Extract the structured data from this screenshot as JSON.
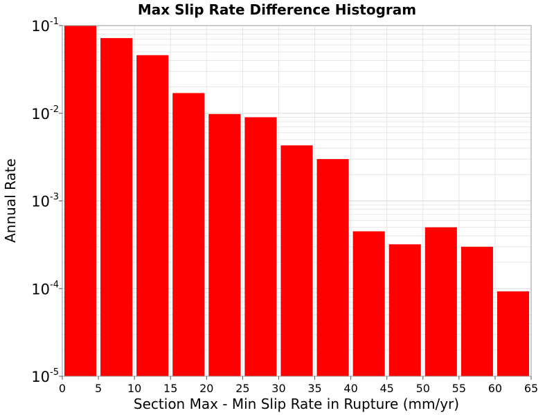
{
  "chart_data": {
    "type": "bar",
    "title": "Max Slip Rate Difference Histogram",
    "xlabel": "Section Max - Min Slip Rate in Rupture (mm/yr)",
    "ylabel": "Annual Rate",
    "yscale": "log",
    "xlim": [
      0,
      65
    ],
    "ylim": [
      1e-05,
      0.1
    ],
    "x_ticks": [
      0,
      5,
      10,
      15,
      20,
      25,
      30,
      35,
      40,
      45,
      50,
      55,
      60,
      65
    ],
    "x_tick_labels": [
      "0",
      "5",
      "10",
      "15",
      "20",
      "25",
      "30",
      "35",
      "40",
      "45",
      "50",
      "55",
      "60",
      "65"
    ],
    "y_ticks": [
      0.1,
      0.01,
      0.001,
      0.0001,
      1e-05
    ],
    "y_tick_labels": [
      {
        "base": "10",
        "exp": "-1"
      },
      {
        "base": "10",
        "exp": "-2"
      },
      {
        "base": "10",
        "exp": "-3"
      },
      {
        "base": "10",
        "exp": "-4"
      },
      {
        "base": "10",
        "exp": "-5"
      }
    ],
    "grid": true,
    "bar_color": "#ff0000",
    "bin_width": 5,
    "bins": [
      {
        "x_start": 0,
        "x_end": 5,
        "value": 0.1
      },
      {
        "x_start": 5,
        "x_end": 10,
        "value": 0.072
      },
      {
        "x_start": 10,
        "x_end": 15,
        "value": 0.046
      },
      {
        "x_start": 15,
        "x_end": 20,
        "value": 0.017
      },
      {
        "x_start": 20,
        "x_end": 25,
        "value": 0.0098
      },
      {
        "x_start": 25,
        "x_end": 30,
        "value": 0.009
      },
      {
        "x_start": 30,
        "x_end": 35,
        "value": 0.0043
      },
      {
        "x_start": 35,
        "x_end": 40,
        "value": 0.003
      },
      {
        "x_start": 40,
        "x_end": 45,
        "value": 0.00045
      },
      {
        "x_start": 45,
        "x_end": 50,
        "value": 0.00032
      },
      {
        "x_start": 50,
        "x_end": 55,
        "value": 0.0005
      },
      {
        "x_start": 55,
        "x_end": 60,
        "value": 0.0003
      },
      {
        "x_start": 60,
        "x_end": 65,
        "value": 9.3e-05
      }
    ]
  }
}
